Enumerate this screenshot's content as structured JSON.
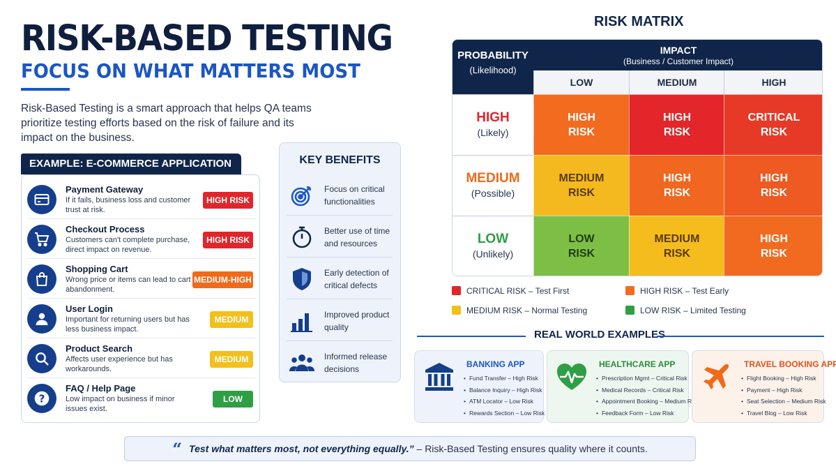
{
  "header": {
    "title": "RISK-BASED TESTING",
    "subtitle": "FOCUS ON WHAT MATTERS MOST",
    "intro": "Risk-Based Testing is a smart approach that helps QA teams prioritize testing efforts based on the risk of failure and its impact on the business."
  },
  "example": {
    "heading": "EXAMPLE: E-COMMERCE APPLICATION",
    "items": [
      {
        "title": "Payment Gateway",
        "desc": "If it fails, business loss and customer trust at risk.",
        "risk": "HIGH RISK",
        "color": "#e0262b",
        "icon": "credit-card-icon"
      },
      {
        "title": "Checkout Process",
        "desc": "Customers can't complete purchase, direct impact on revenue.",
        "risk": "HIGH RISK",
        "color": "#e0262b",
        "icon": "shopping-cart-icon"
      },
      {
        "title": "Shopping Cart",
        "desc": "Wrong price or items can lead to cart abandonment.",
        "risk": "MEDIUM-HIGH",
        "color": "#ef6a1b",
        "icon": "shopping-bag-icon"
      },
      {
        "title": "User Login",
        "desc": "Important for returning users but has less business impact.",
        "risk": "MEDIUM",
        "color": "#f3bf1c",
        "icon": "user-icon"
      },
      {
        "title": "Product Search",
        "desc": "Affects user experience but has workarounds.",
        "risk": "MEDIUM",
        "color": "#f3bf1c",
        "icon": "search-icon"
      },
      {
        "title": "FAQ / Help Page",
        "desc": "Low impact on business if minor issues exist.",
        "risk": "LOW",
        "color": "#2f9e44",
        "icon": "question-icon"
      }
    ]
  },
  "benefits": {
    "title": "KEY BENEFITS",
    "items": [
      {
        "text": "Focus on critical functionalities",
        "icon": "target-icon"
      },
      {
        "text": "Better use of time and resources",
        "icon": "stopwatch-icon"
      },
      {
        "text": "Early detection of critical defects",
        "icon": "shield-icon"
      },
      {
        "text": "Improved product quality",
        "icon": "bar-chart-icon"
      },
      {
        "text": "Informed release decisions",
        "icon": "team-icon"
      }
    ]
  },
  "matrix": {
    "title": "RISK MATRIX",
    "probability_label": "PROBABILITY",
    "probability_sub": "(Likelihood)",
    "impact_label": "IMPACT",
    "impact_sub": "(Business / Customer Impact)",
    "columns": [
      "LOW",
      "MEDIUM",
      "HIGH"
    ],
    "rows": [
      {
        "label": "HIGH",
        "sub": "(Likely)",
        "color": "#e0262b",
        "cells": [
          {
            "l1": "HIGH",
            "l2": "RISK",
            "bg": "#f26b1f",
            "fg": "#ffffff"
          },
          {
            "l1": "HIGH",
            "l2": "RISK",
            "bg": "#e3262a",
            "fg": "#ffffff"
          },
          {
            "l1": "CRITICAL",
            "l2": "RISK",
            "bg": "#e63a27",
            "fg": "#ffffff"
          }
        ]
      },
      {
        "label": "MEDIUM",
        "sub": "(Possible)",
        "color": "#ef6a1b",
        "cells": [
          {
            "l1": "MEDIUM",
            "l2": "RISK",
            "bg": "#f4b91e",
            "fg": "#5a3a08"
          },
          {
            "l1": "HIGH",
            "l2": "RISK",
            "bg": "#f1671f",
            "fg": "#ffffff"
          },
          {
            "l1": "HIGH",
            "l2": "RISK",
            "bg": "#ee5a22",
            "fg": "#ffffff"
          }
        ]
      },
      {
        "label": "LOW",
        "sub": "(Unlikely)",
        "color": "#2f9e44",
        "cells": [
          {
            "l1": "LOW",
            "l2": "RISK",
            "bg": "#7dbf45",
            "fg": "#1e3d10"
          },
          {
            "l1": "MEDIUM",
            "l2": "RISK",
            "bg": "#f5bc1d",
            "fg": "#5a3a08"
          },
          {
            "l1": "HIGH",
            "l2": "RISK",
            "bg": "#f26a1f",
            "fg": "#ffffff"
          }
        ]
      }
    ],
    "legend": [
      {
        "text": "CRITICAL RISK – Test First",
        "color": "#e0262b"
      },
      {
        "text": "HIGH RISK – Test Early",
        "color": "#f26b1f"
      },
      {
        "text": "MEDIUM RISK – Normal Testing",
        "color": "#f4bf1c"
      },
      {
        "text": "LOW RISK – Limited Testing",
        "color": "#2f9e44"
      }
    ]
  },
  "real_world": {
    "title": "REAL WORLD EXAMPLES",
    "cards": [
      {
        "name": "BANKING APP",
        "name_color": "#1a56c4",
        "bg": "#eef3fb",
        "icon": "bank-icon",
        "items": [
          "Fund Transfer – High Risk",
          "Balance Inquiry – High Risk",
          "ATM Locator – Low Risk",
          "Rewards Section – Low Risk"
        ]
      },
      {
        "name": "HEALTHCARE APP",
        "name_color": "#2a8a3e",
        "bg": "#eef7ef",
        "icon": "heartbeat-icon",
        "items": [
          "Prescription Mgmt – Critical Risk",
          "Medical Records – Critical Risk",
          "Appointment Booking – Medium Risk",
          "Feedback Form – Low Risk"
        ]
      },
      {
        "name": "TRAVEL BOOKING APP",
        "name_color": "#e0531d",
        "bg": "#fdf2ea",
        "icon": "airplane-icon",
        "items": [
          "Flight Booking – High Risk",
          "Payment – High Risk",
          "Seat Selection – Medium Risk",
          "Travel Blog – Low Risk"
        ]
      }
    ]
  },
  "quote": {
    "mark": "“",
    "strong": "Test what matters most, not everything equally.”",
    "rest": " – Risk-Based Testing ensures quality where it counts."
  }
}
